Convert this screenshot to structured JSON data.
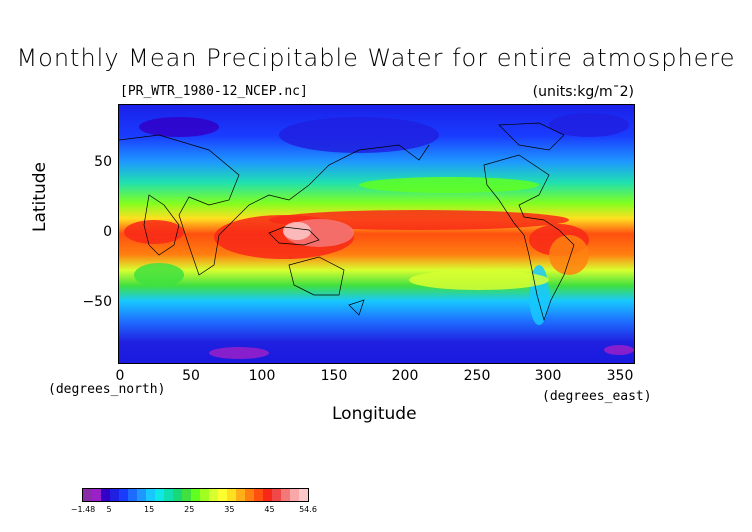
{
  "title": "Monthly Mean Precipitable Water for entire atmosphere",
  "file_label": "[PR_WTR_1980-12_NCEP.nc]",
  "units_label": "(units:kg/m¯2)",
  "chart_data": {
    "type": "heatmap",
    "x_axis": {
      "label": "Longitude",
      "unit": "(degrees_east)",
      "ticks": [
        "0",
        "50",
        "100",
        "150",
        "200",
        "250",
        "300",
        "350"
      ],
      "range": [
        0,
        357.5
      ]
    },
    "y_axis": {
      "label": "Latitude",
      "unit": "(degrees_north)",
      "ticks": [
        "50",
        "0",
        "−50"
      ],
      "range": [
        -90,
        90
      ]
    },
    "colorbar": {
      "labels": [
        "−1.48",
        "5",
        "15",
        "25",
        "35",
        "45",
        "54.6"
      ],
      "range": [
        -1.48,
        54.6
      ],
      "colors": [
        "#8a2ba8",
        "#9a20c8",
        "#3200c8",
        "#2020e0",
        "#1a3cff",
        "#1e6cff",
        "#1e98ff",
        "#18c8ff",
        "#10e8e8",
        "#10e0b0",
        "#18d878",
        "#40e040",
        "#60ff20",
        "#a0ff20",
        "#d8ff30",
        "#ffff30",
        "#ffe020",
        "#ffb018",
        "#ff8010",
        "#ff5010",
        "#f82818",
        "#f04848",
        "#f47878",
        "#f8a8a8",
        "#fcc8c8"
      ]
    },
    "grid": false,
    "coastlines": true
  }
}
